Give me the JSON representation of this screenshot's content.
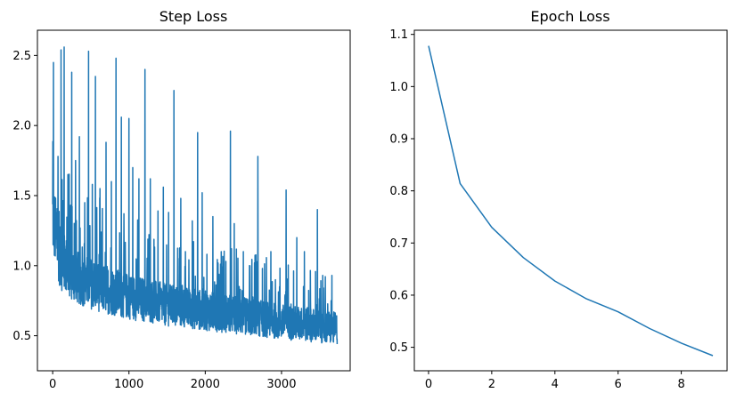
{
  "chart_data": [
    {
      "type": "line",
      "title": "Step Loss",
      "xlabel": "",
      "ylabel": "",
      "xlim": [
        -200,
        3900
      ],
      "ylim": [
        0.25,
        2.68
      ],
      "xticks": [
        0,
        1000,
        2000,
        3000
      ],
      "xtick_labels": [
        "0",
        "1000",
        "2000",
        "3000"
      ],
      "yticks": [
        0.5,
        1.0,
        1.5,
        2.0,
        2.5
      ],
      "ytick_labels": [
        "0.5",
        "1.0",
        "1.5",
        "2.0",
        "2.5"
      ],
      "grid": false,
      "series_color": "#1f77b4",
      "x_range": [
        0,
        3730
      ],
      "trend": {
        "x": [
          0,
          100,
          300,
          600,
          1000,
          1500,
          2000,
          2500,
          3000,
          3500,
          3730
        ],
        "y": [
          1.35,
          1.05,
          0.92,
          0.85,
          0.78,
          0.72,
          0.68,
          0.64,
          0.6,
          0.57,
          0.55
        ]
      },
      "spikes": {
        "x": [
          10,
          70,
          110,
          150,
          200,
          250,
          300,
          350,
          420,
          470,
          520,
          560,
          620,
          700,
          770,
          830,
          900,
          1000,
          1050,
          1130,
          1210,
          1280,
          1380,
          1450,
          1520,
          1590,
          1680,
          1740,
          1830,
          1900,
          1960,
          2100,
          2210,
          2330,
          2380,
          2500,
          2580,
          2690,
          2750,
          2860,
          2920,
          3060,
          3200,
          3300,
          3470,
          3540,
          3650
        ],
        "y": [
          2.45,
          1.78,
          2.54,
          2.56,
          1.65,
          2.38,
          1.75,
          1.92,
          1.45,
          2.53,
          1.58,
          2.35,
          1.55,
          1.88,
          1.6,
          2.48,
          2.06,
          2.05,
          1.7,
          1.62,
          2.4,
          1.62,
          1.39,
          1.56,
          1.38,
          2.25,
          1.48,
          1.1,
          1.32,
          1.95,
          1.52,
          1.35,
          1.1,
          1.96,
          1.3,
          1.1,
          1.0,
          1.78,
          0.98,
          1.1,
          0.9,
          1.54,
          1.2,
          1.1,
          1.4,
          0.93,
          0.75
        ]
      }
    },
    {
      "type": "line",
      "title": "Epoch Loss",
      "xlabel": "",
      "ylabel": "",
      "xlim": [
        -0.45,
        9.45
      ],
      "ylim": [
        0.455,
        1.108
      ],
      "xticks": [
        0,
        2,
        4,
        6,
        8
      ],
      "xtick_labels": [
        "0",
        "2",
        "4",
        "6",
        "8"
      ],
      "yticks": [
        0.5,
        0.6,
        0.7,
        0.8,
        0.9,
        1.0,
        1.1
      ],
      "ytick_labels": [
        "0.5",
        "0.6",
        "0.7",
        "0.8",
        "0.9",
        "1.0",
        "1.1"
      ],
      "grid": false,
      "series_color": "#1f77b4",
      "x": [
        0,
        1,
        2,
        3,
        4,
        5,
        6,
        7,
        8,
        9
      ],
      "y": [
        1.078,
        0.814,
        0.73,
        0.672,
        0.627,
        0.593,
        0.568,
        0.536,
        0.508,
        0.484
      ]
    }
  ]
}
